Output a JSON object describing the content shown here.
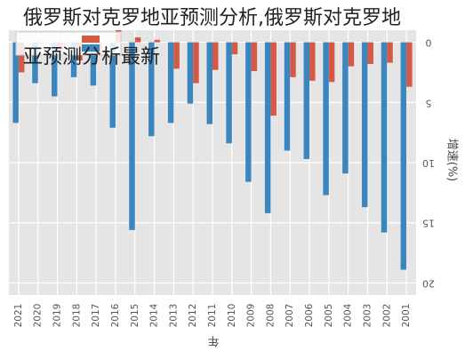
{
  "page": {
    "title_line_1": "俄罗斯对克罗地亚预测分析,俄罗斯对克罗地",
    "title_line_2": "亚预测分析最新"
  },
  "chart_data": {
    "type": "bar",
    "orientation": "rotated-180",
    "xlabel": "年",
    "ylabel": "增速(%)",
    "ylim": [
      -1,
      21
    ],
    "yticks": [
      0,
      5,
      10,
      15,
      20
    ],
    "grid": true,
    "legend_placement": "top-right",
    "background": "#e5e5e5",
    "categories": [
      "2021",
      "2020",
      "2019",
      "2018",
      "2017",
      "2016",
      "2015",
      "2014",
      "2013",
      "2012",
      "2011",
      "2010",
      "2009",
      "2008",
      "2007",
      "2006",
      "2005",
      "2004",
      "2003",
      "2002",
      "2001"
    ],
    "series": [
      {
        "color": "#d45a45",
        "values": [
          2.5,
          0.1,
          0.7,
          1.5,
          1.1,
          -1.0,
          -0.4,
          -0.2,
          2.2,
          3.4,
          2.3,
          1.0,
          2.4,
          6.1,
          2.9,
          3.2,
          3.3,
          2.0,
          1.8,
          1.7,
          3.7
        ]
      },
      {
        "color": "#3b86be",
        "values": [
          6.7,
          3.4,
          4.5,
          2.9,
          3.6,
          7.1,
          15.6,
          7.8,
          6.7,
          5.1,
          6.8,
          8.4,
          11.6,
          14.2,
          9.0,
          9.7,
          12.7,
          10.9,
          13.7,
          15.8,
          18.9
        ]
      }
    ]
  }
}
